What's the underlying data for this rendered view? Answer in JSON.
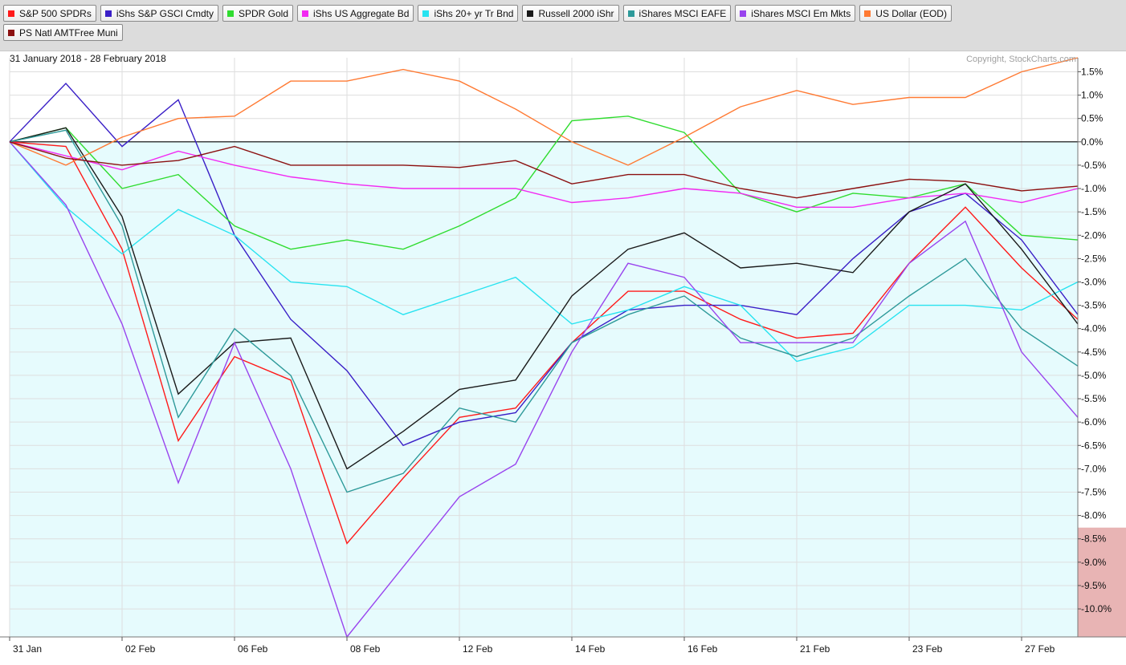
{
  "legend": {
    "items": [
      {
        "label": "S&P 500 SPDRs",
        "color": "#ff1a1a"
      },
      {
        "label": "iShs S&P GSCI Cmdty",
        "color": "#3a1fc7"
      },
      {
        "label": "SPDR Gold",
        "color": "#2fdc2f"
      },
      {
        "label": "iShs US Aggregate Bd",
        "color": "#f229f2"
      },
      {
        "label": "iShs 20+ yr Tr Bnd",
        "color": "#27e3f0"
      },
      {
        "label": "Russell 2000 iShr",
        "color": "#1a1a1a"
      },
      {
        "label": "iShares MSCI EAFE",
        "color": "#2e9a9a"
      },
      {
        "label": "iShares MSCI Em Mkts",
        "color": "#9944ee"
      },
      {
        "label": "US Dollar (EOD)",
        "color": "#ff7a33"
      },
      {
        "label": "PS Natl AMTFree Muni",
        "color": "#8b1010"
      }
    ]
  },
  "header": {
    "date_range": "31 January 2018 - 28 February 2018",
    "copyright": "Copyright, StockCharts.com"
  },
  "chart_data": {
    "type": "line",
    "ylim": [
      -10.6,
      1.8
    ],
    "xlim": [
      0,
      19
    ],
    "yticks": [
      1.5,
      1.0,
      0.5,
      0.0,
      -0.5,
      -1.0,
      -1.5,
      -2.0,
      -2.5,
      -3.0,
      -3.5,
      -4.0,
      -4.5,
      -5.0,
      -5.5,
      -6.0,
      -6.5,
      -7.0,
      -7.5,
      -8.0,
      -8.5,
      -9.0,
      -9.5,
      -10.0
    ],
    "ytick_labels": [
      "1.5%",
      "1.0%",
      "0.5%",
      "0.0%",
      "-0.5%",
      "-1.0%",
      "-1.5%",
      "-2.0%",
      "-2.5%",
      "-3.0%",
      "-3.5%",
      "-4.0%",
      "-4.5%",
      "-5.0%",
      "-5.5%",
      "-6.0%",
      "-6.5%",
      "-7.0%",
      "-7.5%",
      "-8.0%",
      "-8.5%",
      "-9.0%",
      "-9.5%",
      "-10.0%"
    ],
    "highlighted_ytick_from": -8.5,
    "highlight_color": "#e8b4b4",
    "xtick_labels": [
      {
        "i": 0,
        "label": "31 Jan"
      },
      {
        "i": 2,
        "label": "02 Feb"
      },
      {
        "i": 4,
        "label": "06 Feb"
      },
      {
        "i": 6,
        "label": "08 Feb"
      },
      {
        "i": 8,
        "label": "12 Feb"
      },
      {
        "i": 10,
        "label": "14 Feb"
      },
      {
        "i": 12,
        "label": "16 Feb"
      },
      {
        "i": 14,
        "label": "21 Feb"
      },
      {
        "i": 16,
        "label": "23 Feb"
      },
      {
        "i": 18,
        "label": "27 Feb"
      }
    ],
    "zero_line": 0.0,
    "background_positive": "#ffffff",
    "background_negative": "#e6fbfd",
    "grid": true,
    "series": [
      {
        "name": "S&P 500 SPDRs",
        "color": "#ff1a1a",
        "values": [
          0.0,
          -0.1,
          -2.3,
          -6.4,
          -4.6,
          -5.1,
          -8.6,
          -7.2,
          -5.9,
          -5.7,
          -4.3,
          -3.2,
          -3.2,
          -3.8,
          -4.2,
          -4.1,
          -2.6,
          -1.4,
          -2.7,
          -3.8
        ]
      },
      {
        "name": "iShs S&P GSCI Cmdty",
        "color": "#3a1fc7",
        "values": [
          0.0,
          1.25,
          -0.1,
          0.9,
          -2.0,
          -3.8,
          -4.9,
          -6.5,
          -6.0,
          -5.8,
          -4.3,
          -3.6,
          -3.5,
          -3.5,
          -3.7,
          -2.5,
          -1.5,
          -1.1,
          -2.1,
          -3.7
        ]
      },
      {
        "name": "SPDR Gold",
        "color": "#2fdc2f",
        "values": [
          0.0,
          0.3,
          -1.0,
          -0.7,
          -1.8,
          -2.3,
          -2.1,
          -2.3,
          -1.8,
          -1.2,
          0.45,
          0.55,
          0.2,
          -1.1,
          -1.5,
          -1.1,
          -1.2,
          -0.9,
          -2.0,
          -2.1
        ]
      },
      {
        "name": "iShs US Aggregate Bd",
        "color": "#f229f2",
        "values": [
          0.0,
          -0.3,
          -0.6,
          -0.2,
          -0.5,
          -0.75,
          -0.9,
          -1.0,
          -1.0,
          -1.0,
          -1.3,
          -1.2,
          -1.0,
          -1.1,
          -1.4,
          -1.4,
          -1.2,
          -1.1,
          -1.3,
          -1.0
        ]
      },
      {
        "name": "iShs 20+ yr Tr Bnd",
        "color": "#27e3f0",
        "values": [
          0.0,
          -1.4,
          -2.4,
          -1.45,
          -2.0,
          -3.0,
          -3.1,
          -3.7,
          -3.3,
          -2.9,
          -3.9,
          -3.6,
          -3.1,
          -3.5,
          -4.7,
          -4.4,
          -3.5,
          -3.5,
          -3.6,
          -3.0
        ]
      },
      {
        "name": "Russell 2000 iShr",
        "color": "#1a1a1a",
        "values": [
          0.0,
          0.3,
          -1.6,
          -5.4,
          -4.3,
          -4.2,
          -7.0,
          -6.2,
          -5.3,
          -5.1,
          -3.3,
          -2.3,
          -1.95,
          -2.7,
          -2.6,
          -2.8,
          -1.5,
          -0.9,
          -2.3,
          -3.9
        ]
      },
      {
        "name": "iShares MSCI EAFE",
        "color": "#2e9a9a",
        "values": [
          0.0,
          0.25,
          -1.8,
          -5.9,
          -4.0,
          -5.0,
          -7.5,
          -7.1,
          -5.7,
          -6.0,
          -4.3,
          -3.7,
          -3.3,
          -4.2,
          -4.6,
          -4.2,
          -3.3,
          -2.5,
          -4.0,
          -4.8
        ]
      },
      {
        "name": "iShares MSCI Em Mkts",
        "color": "#9944ee",
        "values": [
          0.0,
          -1.35,
          -3.9,
          -7.3,
          -4.3,
          -7.0,
          -10.6,
          -9.1,
          -7.6,
          -6.9,
          -4.5,
          -2.6,
          -2.9,
          -4.3,
          -4.3,
          -4.3,
          -2.6,
          -1.7,
          -4.5,
          -5.9
        ]
      },
      {
        "name": "US Dollar (EOD)",
        "color": "#ff7a33",
        "values": [
          0.0,
          -0.5,
          0.1,
          0.5,
          0.55,
          1.3,
          1.3,
          1.55,
          1.3,
          0.7,
          0.0,
          -0.5,
          0.1,
          0.75,
          1.1,
          0.8,
          0.95,
          0.95,
          1.5,
          1.8
        ]
      },
      {
        "name": "PS Natl AMTFree Muni",
        "color": "#8b1010",
        "values": [
          0.0,
          -0.35,
          -0.5,
          -0.4,
          -0.1,
          -0.5,
          -0.5,
          -0.5,
          -0.55,
          -0.4,
          -0.9,
          -0.7,
          -0.7,
          -1.0,
          -1.2,
          -1.0,
          -0.8,
          -0.85,
          -1.05,
          -0.95
        ]
      }
    ]
  }
}
